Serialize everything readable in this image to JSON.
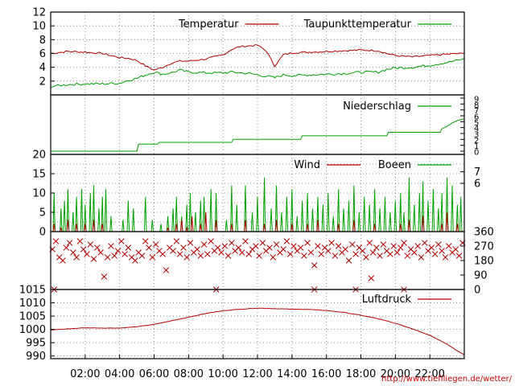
{
  "credit": "http://www.tiefiliegen.de/wetter/",
  "colors": {
    "red": "#b30000",
    "green": "#00a000",
    "frame": "#000000"
  },
  "time_axis": {
    "hours": [
      0,
      24
    ],
    "tick_labels": [
      "02:00",
      "04:00",
      "06:00",
      "08:00",
      "10:00",
      "12:00",
      "14:00",
      "16:00",
      "18:00",
      "20:00",
      "22:00"
    ],
    "tick_hours": [
      2,
      4,
      6,
      8,
      10,
      12,
      14,
      16,
      18,
      20,
      22
    ]
  },
  "chart_data": [
    {
      "id": "temperature",
      "type": "line",
      "ylim": [
        0,
        12
      ],
      "yticks": [
        "2",
        "4",
        "6",
        "8",
        "10",
        "12"
      ],
      "ytick_values": [
        2,
        4,
        6,
        8,
        10,
        12
      ],
      "legend": [
        "Temperatur",
        "Taupunkttemperatur"
      ],
      "x": [
        0,
        1,
        2,
        3,
        4,
        4.5,
        5,
        5.5,
        6,
        6.5,
        7,
        7.5,
        8,
        9,
        10,
        10.5,
        11,
        11.5,
        12,
        12.5,
        13,
        13.5,
        14,
        15,
        16,
        17,
        18,
        19,
        19.5,
        20,
        21,
        22,
        23,
        24
      ],
      "series": [
        {
          "name": "Temperatur",
          "color": "red",
          "values": [
            6.0,
            6.3,
            6.2,
            6.0,
            5.4,
            5.3,
            5.0,
            4.2,
            3.6,
            4.0,
            4.6,
            4.9,
            4.9,
            5.2,
            5.8,
            6.6,
            7.0,
            7.1,
            7.2,
            6.4,
            4.2,
            5.8,
            6.1,
            6.2,
            6.3,
            6.4,
            6.5,
            6.4,
            6.0,
            5.7,
            5.5,
            5.7,
            5.9,
            6.0
          ]
        },
        {
          "name": "Taupunkttemperatur",
          "color": "green",
          "values": [
            1.2,
            1.5,
            1.6,
            1.6,
            1.7,
            2.1,
            2.4,
            2.9,
            3.3,
            3.0,
            3.2,
            3.6,
            3.3,
            3.2,
            3.2,
            3.3,
            3.2,
            3.1,
            2.9,
            2.7,
            2.5,
            2.9,
            2.8,
            2.9,
            3.0,
            3.1,
            3.3,
            3.3,
            3.7,
            3.9,
            4.0,
            4.3,
            4.7,
            5.2
          ]
        }
      ]
    },
    {
      "id": "precipitation",
      "type": "line",
      "ylim": [
        0,
        9
      ],
      "yticks": [
        "0",
        "1",
        "2",
        "3",
        "4",
        "5",
        "6",
        "7",
        "8",
        "9"
      ],
      "ytick_values": [
        0,
        1,
        2,
        3,
        4,
        5,
        6,
        7,
        8,
        9
      ],
      "legend": [
        "Niederschlag"
      ],
      "x": [
        0,
        5.0,
        5.1,
        6.2,
        6.3,
        10.5,
        10.6,
        14.5,
        14.6,
        19.5,
        19.6,
        22.6,
        22.7,
        23.0,
        23.3,
        23.6,
        24
      ],
      "series": [
        {
          "name": "Niederschlag",
          "color": "green",
          "values": [
            0,
            0,
            1.2,
            1.2,
            1.5,
            1.5,
            2.0,
            2.0,
            2.6,
            2.6,
            3.2,
            3.2,
            3.8,
            4.2,
            4.8,
            5.2,
            5.5
          ]
        }
      ]
    },
    {
      "id": "wind",
      "type": "line",
      "ylim": [
        0,
        20
      ],
      "yticks": [
        "0",
        "5",
        "10",
        "15",
        "20"
      ],
      "ytick_values": [
        0,
        5,
        10,
        15,
        20
      ],
      "right_ticks": [
        "6",
        "7"
      ],
      "right_tick_values": [
        12.5,
        15.5
      ],
      "legend": [
        "Wind",
        "Boeen"
      ],
      "gust_peaks": [
        [
          0.2,
          10
        ],
        [
          0.6,
          6
        ],
        [
          0.8,
          8
        ],
        [
          1.0,
          11
        ],
        [
          1.3,
          5
        ],
        [
          1.5,
          9
        ],
        [
          1.8,
          11
        ],
        [
          2.0,
          7
        ],
        [
          2.3,
          10
        ],
        [
          2.5,
          12
        ],
        [
          2.8,
          6
        ],
        [
          3.0,
          9
        ],
        [
          3.2,
          11
        ],
        [
          3.5,
          4
        ],
        [
          4.2,
          3
        ],
        [
          4.5,
          8
        ],
        [
          4.8,
          6
        ],
        [
          5.5,
          9
        ],
        [
          5.9,
          3
        ],
        [
          6.4,
          2
        ],
        [
          6.8,
          4
        ],
        [
          7.1,
          6
        ],
        [
          7.3,
          9
        ],
        [
          7.6,
          4
        ],
        [
          7.9,
          7
        ],
        [
          8.1,
          10
        ],
        [
          8.4,
          5
        ],
        [
          8.7,
          8
        ],
        [
          8.9,
          9
        ],
        [
          9.3,
          11
        ],
        [
          9.6,
          10
        ],
        [
          10.2,
          3
        ],
        [
          10.5,
          12
        ],
        [
          10.8,
          7
        ],
        [
          11.3,
          12
        ],
        [
          11.7,
          5
        ],
        [
          12.0,
          9
        ],
        [
          12.4,
          14
        ],
        [
          12.8,
          6
        ],
        [
          13.1,
          12
        ],
        [
          13.4,
          5
        ],
        [
          13.7,
          9
        ],
        [
          14.0,
          11
        ],
        [
          14.3,
          4
        ],
        [
          14.6,
          8
        ],
        [
          14.9,
          10
        ],
        [
          15.2,
          6
        ],
        [
          15.5,
          9
        ],
        [
          15.8,
          7
        ],
        [
          16.1,
          10
        ],
        [
          16.4,
          4
        ],
        [
          16.7,
          11
        ],
        [
          17.0,
          6
        ],
        [
          17.3,
          8
        ],
        [
          17.6,
          12
        ],
        [
          17.9,
          5
        ],
        [
          18.2,
          9
        ],
        [
          18.5,
          7
        ],
        [
          18.8,
          11
        ],
        [
          19.1,
          6
        ],
        [
          19.4,
          9
        ],
        [
          19.7,
          5
        ],
        [
          20.0,
          8
        ],
        [
          20.3,
          10
        ],
        [
          20.5,
          5
        ],
        [
          20.8,
          14
        ],
        [
          21.1,
          7
        ],
        [
          21.4,
          10
        ],
        [
          21.6,
          13
        ],
        [
          21.9,
          8
        ],
        [
          22.2,
          11
        ],
        [
          22.5,
          6
        ],
        [
          22.7,
          10
        ],
        [
          23.0,
          14
        ],
        [
          23.3,
          12
        ],
        [
          23.6,
          7
        ],
        [
          23.8,
          9
        ]
      ],
      "wind_peaks": [
        [
          0.2,
          2
        ],
        [
          0.6,
          1
        ],
        [
          1.0,
          3
        ],
        [
          1.5,
          2
        ],
        [
          2.0,
          2
        ],
        [
          2.5,
          3
        ],
        [
          3.0,
          2
        ],
        [
          6.8,
          1
        ],
        [
          7.3,
          2
        ],
        [
          7.6,
          3
        ],
        [
          7.9,
          1
        ],
        [
          8.2,
          4
        ],
        [
          8.7,
          2
        ],
        [
          9.0,
          5
        ],
        [
          9.6,
          3
        ],
        [
          10.5,
          2
        ],
        [
          11.3,
          3
        ],
        [
          12.4,
          2
        ],
        [
          13.1,
          3
        ],
        [
          14.0,
          2
        ],
        [
          14.9,
          2
        ],
        [
          15.5,
          3
        ],
        [
          16.7,
          2
        ],
        [
          17.6,
          3
        ],
        [
          18.8,
          2
        ],
        [
          20.3,
          2
        ],
        [
          20.8,
          3
        ],
        [
          21.6,
          4
        ],
        [
          22.7,
          2
        ],
        [
          23.0,
          5
        ],
        [
          23.6,
          2
        ]
      ]
    },
    {
      "id": "wind_direction",
      "type": "scatter",
      "ylim": [
        0,
        360
      ],
      "yticks": [
        "0",
        "90",
        "180",
        "270",
        "360"
      ],
      "ytick_values": [
        0,
        90,
        180,
        270,
        360
      ],
      "marker": "x",
      "color": "red",
      "points": [
        [
          0.1,
          250
        ],
        [
          0.3,
          300
        ],
        [
          0.5,
          200
        ],
        [
          0.7,
          180
        ],
        [
          0.9,
          260
        ],
        [
          1.1,
          290
        ],
        [
          1.3,
          230
        ],
        [
          1.5,
          200
        ],
        [
          1.7,
          300
        ],
        [
          1.9,
          250
        ],
        [
          2.1,
          220
        ],
        [
          2.3,
          280
        ],
        [
          2.5,
          190
        ],
        [
          2.7,
          260
        ],
        [
          2.9,
          230
        ],
        [
          3.1,
          80
        ],
        [
          3.3,
          200
        ],
        [
          3.5,
          270
        ],
        [
          3.7,
          210
        ],
        [
          3.9,
          240
        ],
        [
          4.1,
          300
        ],
        [
          4.3,
          220
        ],
        [
          4.5,
          260
        ],
        [
          4.7,
          200
        ],
        [
          4.9,
          180
        ],
        [
          5.1,
          230
        ],
        [
          5.3,
          210
        ],
        [
          5.5,
          300
        ],
        [
          5.7,
          260
        ],
        [
          5.9,
          200
        ],
        [
          6.1,
          280
        ],
        [
          6.3,
          240
        ],
        [
          6.5,
          220
        ],
        [
          6.7,
          120
        ],
        [
          6.9,
          260
        ],
        [
          7.1,
          240
        ],
        [
          7.3,
          300
        ],
        [
          7.5,
          220
        ],
        [
          7.7,
          260
        ],
        [
          7.9,
          200
        ],
        [
          8.1,
          290
        ],
        [
          8.3,
          230
        ],
        [
          8.5,
          250
        ],
        [
          8.7,
          210
        ],
        [
          8.9,
          280
        ],
        [
          9.1,
          220
        ],
        [
          9.3,
          300
        ],
        [
          9.5,
          240
        ],
        [
          9.7,
          260
        ],
        [
          9.9,
          230
        ],
        [
          10.1,
          270
        ],
        [
          10.3,
          210
        ],
        [
          10.5,
          290
        ],
        [
          10.7,
          240
        ],
        [
          10.9,
          260
        ],
        [
          11.1,
          230
        ],
        [
          11.3,
          300
        ],
        [
          11.5,
          220
        ],
        [
          11.7,
          250
        ],
        [
          11.9,
          270
        ],
        [
          12.1,
          210
        ],
        [
          12.3,
          290
        ],
        [
          12.5,
          240
        ],
        [
          12.7,
          260
        ],
        [
          12.9,
          200
        ],
        [
          13.1,
          280
        ],
        [
          13.3,
          230
        ],
        [
          13.5,
          250
        ],
        [
          13.7,
          300
        ],
        [
          13.9,
          220
        ],
        [
          14.1,
          270
        ],
        [
          14.3,
          240
        ],
        [
          14.5,
          260
        ],
        [
          14.7,
          210
        ],
        [
          14.9,
          290
        ],
        [
          15.1,
          230
        ],
        [
          15.3,
          150
        ],
        [
          15.5,
          270
        ],
        [
          15.7,
          220
        ],
        [
          15.9,
          260
        ],
        [
          16.1,
          240
        ],
        [
          16.3,
          290
        ],
        [
          16.5,
          210
        ],
        [
          16.7,
          270
        ],
        [
          16.9,
          230
        ],
        [
          17.1,
          250
        ],
        [
          17.3,
          180
        ],
        [
          17.5,
          280
        ],
        [
          17.7,
          220
        ],
        [
          17.9,
          260
        ],
        [
          18.1,
          240
        ],
        [
          18.3,
          200
        ],
        [
          18.5,
          290
        ],
        [
          18.7,
          230
        ],
        [
          18.9,
          260
        ],
        [
          19.1,
          210
        ],
        [
          19.3,
          280
        ],
        [
          19.5,
          240
        ],
        [
          19.7,
          220
        ],
        [
          19.9,
          270
        ],
        [
          20.1,
          230
        ],
        [
          20.3,
          260
        ],
        [
          20.5,
          290
        ],
        [
          20.7,
          210
        ],
        [
          20.9,
          250
        ],
        [
          21.1,
          230
        ],
        [
          21.3,
          270
        ],
        [
          21.5,
          200
        ],
        [
          21.7,
          290
        ],
        [
          21.9,
          240
        ],
        [
          22.1,
          260
        ],
        [
          22.3,
          220
        ],
        [
          22.5,
          280
        ],
        [
          22.7,
          240
        ],
        [
          22.9,
          200
        ],
        [
          23.1,
          270
        ],
        [
          23.3,
          230
        ],
        [
          23.5,
          250
        ],
        [
          23.7,
          210
        ],
        [
          23.9,
          290
        ],
        [
          0.2,
          0
        ],
        [
          9.6,
          0
        ],
        [
          15.3,
          0
        ],
        [
          17.7,
          0
        ],
        [
          18.6,
          70
        ],
        [
          20.5,
          0
        ]
      ]
    },
    {
      "id": "pressure",
      "type": "line",
      "ylim": [
        989,
        1015
      ],
      "yticks": [
        "990",
        "995",
        "1000",
        "1005",
        "1010",
        "1015"
      ],
      "ytick_values": [
        990,
        995,
        1000,
        1005,
        1010,
        1015
      ],
      "legend": [
        "Luftdruck"
      ],
      "x": [
        0,
        1,
        2,
        3,
        4,
        5,
        6,
        7,
        8,
        9,
        10,
        11,
        12,
        13,
        14,
        15,
        16,
        17,
        18,
        19,
        20,
        21,
        22,
        23,
        23.5,
        24
      ],
      "series": [
        {
          "name": "Luftdruck",
          "color": "red",
          "values": [
            999.8,
            1000.2,
            1000.6,
            1000.5,
            1000.5,
            1001.0,
            1001.9,
            1003.2,
            1004.6,
            1006.0,
            1007.0,
            1007.6,
            1008.0,
            1007.8,
            1007.6,
            1007.5,
            1007.1,
            1006.4,
            1005.3,
            1004.0,
            1002.3,
            1000.2,
            997.8,
            994.5,
            992.3,
            990.5
          ]
        }
      ]
    }
  ]
}
